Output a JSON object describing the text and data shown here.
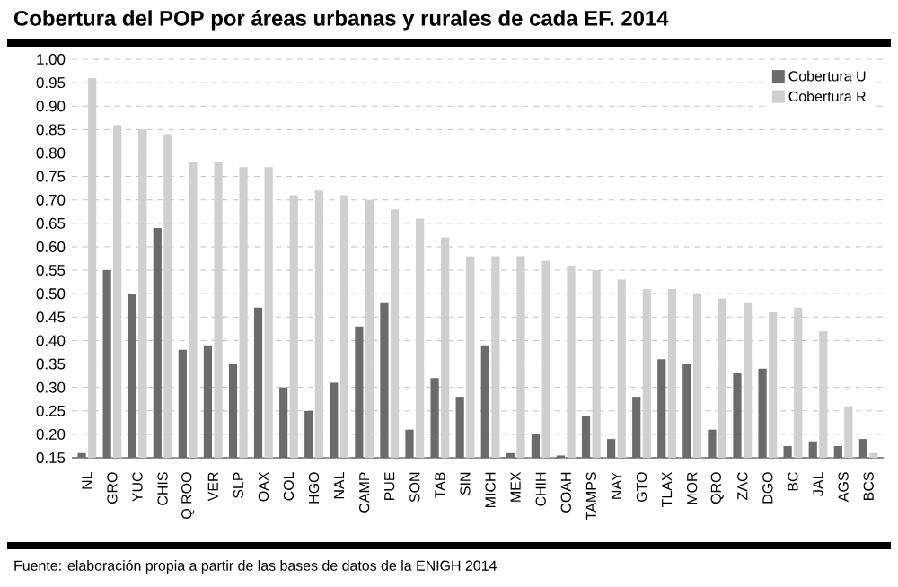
{
  "chart_data": {
    "type": "bar",
    "title": "Cobertura del POP por áreas urbanas y rurales de cada EF. 2014",
    "categories": [
      "NL",
      "GRO",
      "YUC",
      "CHIS",
      "Q ROO",
      "VER",
      "SLP",
      "OAX",
      "COL",
      "HGO",
      "NAL",
      "CAMP",
      "PUE",
      "SON",
      "TAB",
      "SIN",
      "MICH",
      "MEX",
      "CHIH",
      "COAH",
      "TAMPS",
      "NAY",
      "GTO",
      "TLAX",
      "MOR",
      "QRO",
      "ZAC",
      "DGO",
      "BC",
      "JAL",
      "AGS",
      "BCS"
    ],
    "series": [
      {
        "name": "Cobertura U",
        "color": "#6b6b6b",
        "values": [
          0.16,
          0.55,
          0.5,
          0.64,
          0.38,
          0.39,
          0.35,
          0.47,
          0.3,
          0.25,
          0.31,
          0.43,
          0.48,
          0.21,
          0.32,
          0.28,
          0.39,
          0.16,
          0.2,
          0.155,
          0.24,
          0.19,
          0.28,
          0.36,
          0.35,
          0.21,
          0.33,
          0.34,
          0.175,
          0.185,
          0.175,
          0.19
        ]
      },
      {
        "name": "Cobertura R",
        "color": "#d0d0d0",
        "values": [
          0.96,
          0.86,
          0.85,
          0.84,
          0.78,
          0.78,
          0.77,
          0.77,
          0.71,
          0.72,
          0.71,
          0.7,
          0.68,
          0.66,
          0.62,
          0.58,
          0.58,
          0.58,
          0.57,
          0.56,
          0.55,
          0.53,
          0.51,
          0.51,
          0.5,
          0.49,
          0.48,
          0.46,
          0.47,
          0.42,
          0.26,
          0.16
        ]
      }
    ],
    "ylim": [
      0.15,
      1.0
    ],
    "yticks": [
      {
        "value": 0.15,
        "label": "0.15"
      },
      {
        "value": 0.2,
        "label": "0.20"
      },
      {
        "value": 0.25,
        "label": "0.25"
      },
      {
        "value": 0.3,
        "label": "0.30"
      },
      {
        "value": 0.35,
        "label": "0.35"
      },
      {
        "value": 0.4,
        "label": "0.40"
      },
      {
        "value": 0.45,
        "label": "0.45"
      },
      {
        "value": 0.5,
        "label": "0.50"
      },
      {
        "value": 0.55,
        "label": "0.55"
      },
      {
        "value": 0.6,
        "label": "0.60"
      },
      {
        "value": 0.65,
        "label": "0.65"
      },
      {
        "value": 0.7,
        "label": "0.70"
      },
      {
        "value": 0.75,
        "label": "0.75"
      },
      {
        "value": 0.8,
        "label": "0.80"
      },
      {
        "value": 0.85,
        "label": "0.85"
      },
      {
        "value": 0.9,
        "label": "0.90"
      },
      {
        "value": 0.95,
        "label": "0.95"
      },
      {
        "value": 1.0,
        "label": "1.00"
      }
    ],
    "grid": "y",
    "legend": "top right",
    "annotations": [
      "Fuente: elaboración propia a partir de las bases de datos de la ENIGH 2014"
    ]
  }
}
